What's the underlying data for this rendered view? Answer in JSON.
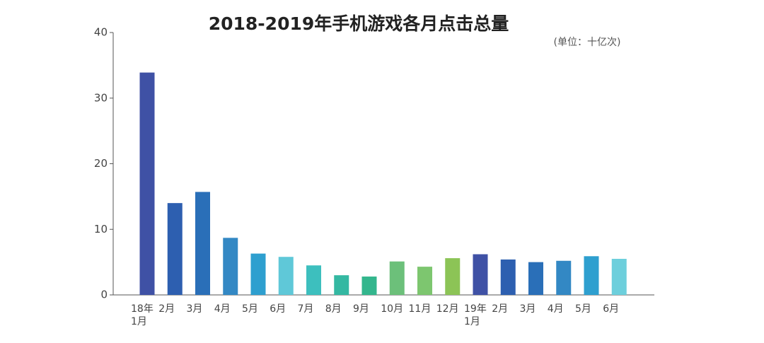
{
  "chart_data": {
    "type": "bar",
    "title": "2018-2019年手机游戏各月点击总量",
    "subtitle": "(单位：十亿次)",
    "categories": [
      "18年\n1月",
      "2月",
      "3月",
      "4月",
      "5月",
      "6月",
      "7月",
      "8月",
      "9月",
      "10月",
      "11月",
      "12月",
      "19年\n1月",
      "2月",
      "3月",
      "4月",
      "5月",
      "6月"
    ],
    "values": [
      33.9,
      14,
      15.7,
      8.7,
      6.3,
      5.8,
      4.5,
      3,
      2.8,
      5.1,
      4.3,
      5.6,
      6.2,
      5.4,
      5.0,
      5.2,
      5.9,
      5.5
    ],
    "colors": [
      "#3f51a5",
      "#2d5fb0",
      "#2a6fb8",
      "#3388c4",
      "#2e9fcf",
      "#5fc8d8",
      "#3dbfbe",
      "#34b8a2",
      "#33b68d",
      "#6cc07a",
      "#7dc66f",
      "#8cc456",
      "#3f51a5",
      "#2d5fb0",
      "#2a6fb8",
      "#3388c4",
      "#2e9fcf",
      "#6dcfdc"
    ],
    "ylim": [
      0,
      40
    ],
    "yticks": [
      0,
      10,
      20,
      30,
      40
    ]
  }
}
